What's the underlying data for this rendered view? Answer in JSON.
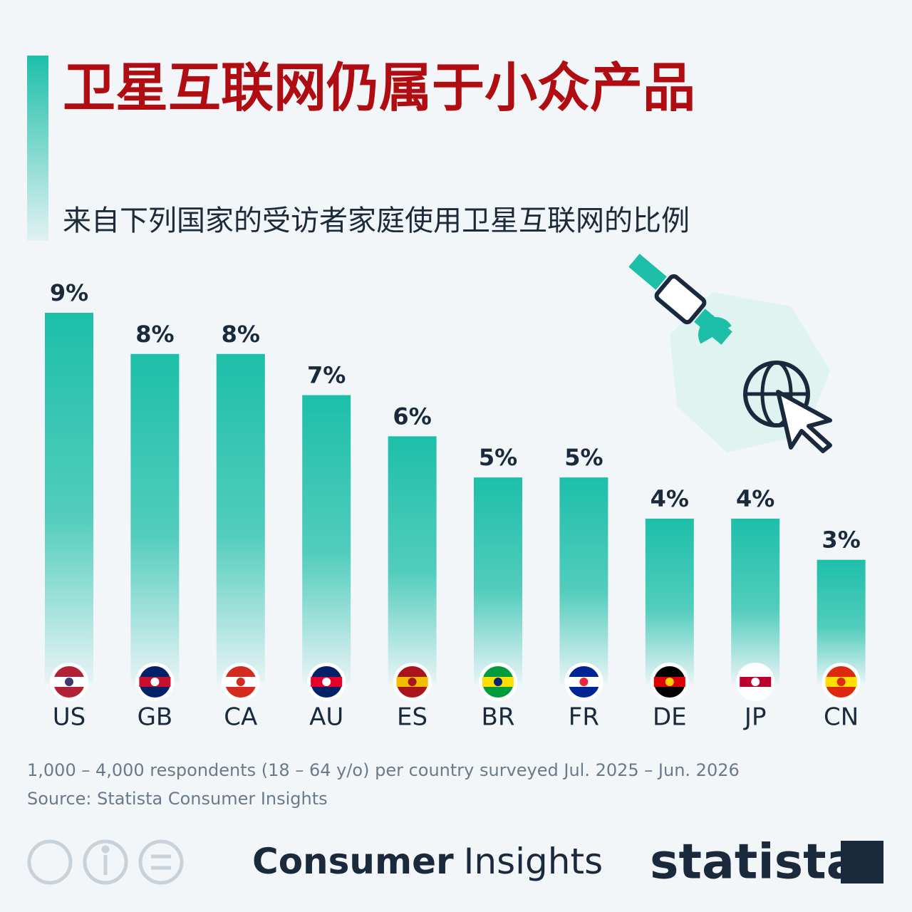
{
  "chart_data": {
    "type": "bar",
    "title": "卫星互联网仍属于小众产品",
    "subtitle": "来自下列国家的受访者家庭使用卫星互联网的比例",
    "categories": [
      "US",
      "GB",
      "CA",
      "AU",
      "ES",
      "BR",
      "FR",
      "DE",
      "JP",
      "CN"
    ],
    "values": [
      9,
      8,
      8,
      7,
      6,
      5,
      5,
      4,
      4,
      3
    ],
    "value_labels": [
      "9%",
      "8%",
      "8%",
      "7%",
      "6%",
      "5%",
      "5%",
      "4%",
      "4%",
      "3%"
    ],
    "color": "#1dbfa9",
    "note": "1,000 – 4,000 respondents (18 – 64 y/o) per country surveyed Jul. 2025 – Jun. 2026",
    "source": "Source: Statista Consumer Insights",
    "brand_bold": "Consumer",
    "brand_light": "Insights",
    "logo": "statista"
  }
}
